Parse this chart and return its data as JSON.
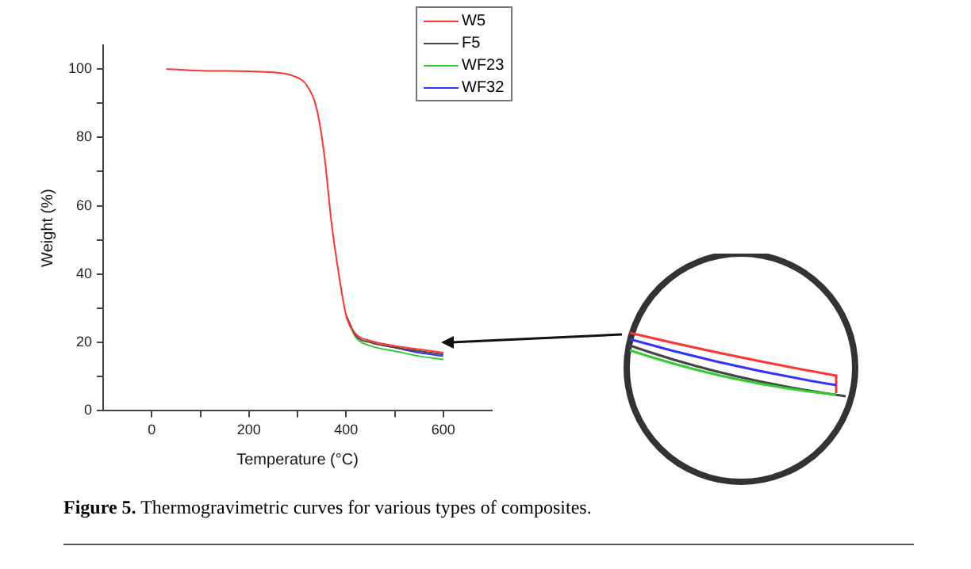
{
  "chart_data": {
    "type": "line",
    "xlabel": "Temperature (°C)",
    "ylabel": "Weight (%)",
    "x": [
      30,
      100,
      200,
      250,
      290,
      320,
      340,
      355,
      370,
      385,
      400,
      420,
      450,
      500,
      550,
      600
    ],
    "series": [
      {
        "name": "W5",
        "color": "#ff3333",
        "values": [
          100,
          99.5,
          99.3,
          99,
          98,
          95,
          88,
          75,
          55,
          40,
          28,
          22.5,
          20.5,
          19,
          18,
          17
        ]
      },
      {
        "name": "F5",
        "color": "#444444",
        "values": [
          null,
          null,
          null,
          null,
          null,
          null,
          null,
          null,
          null,
          null,
          28,
          22,
          20,
          18.5,
          17.5,
          16.5
        ]
      },
      {
        "name": "WF23",
        "color": "#33cc33",
        "values": [
          null,
          null,
          null,
          null,
          null,
          null,
          null,
          null,
          null,
          null,
          27.5,
          21.5,
          19,
          17.5,
          16,
          15
        ]
      },
      {
        "name": "WF32",
        "color": "#3333ff",
        "values": [
          null,
          null,
          null,
          null,
          null,
          null,
          null,
          null,
          null,
          null,
          null,
          null,
          null,
          18.5,
          17,
          16
        ]
      }
    ],
    "xlim": [
      -100,
      700
    ],
    "xticks": [
      0,
      {
        "value": 100,
        "label": null
      },
      200,
      {
        "value": 300,
        "label": null
      },
      400,
      {
        "value": 500,
        "label": null
      },
      600
    ],
    "ylim": [
      0,
      107
    ],
    "yticks": [
      0,
      {
        "value": 10,
        "label": null
      },
      20,
      {
        "value": 30,
        "label": null
      },
      40,
      {
        "value": 50,
        "label": null
      },
      60,
      {
        "value": 70,
        "label": null
      },
      80,
      {
        "value": 90,
        "label": null
      },
      100
    ],
    "grid": false,
    "legend": "top right",
    "marker": "none",
    "line_style": "solid",
    "annotations": [
      "Figure 5. Thermogravimetric curves for various types of composites."
    ]
  }
}
